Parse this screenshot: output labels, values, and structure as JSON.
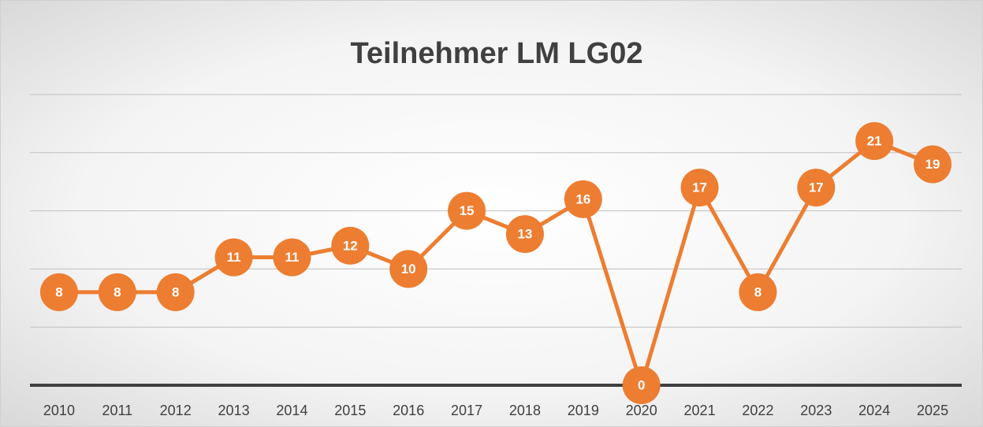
{
  "chart_data": {
    "type": "line",
    "title": "Teilnehmer LM LG02",
    "categories": [
      "2010",
      "2011",
      "2012",
      "2013",
      "2014",
      "2015",
      "2016",
      "2017",
      "2018",
      "2019",
      "2020",
      "2021",
      "2022",
      "2023",
      "2024",
      "2025"
    ],
    "values": [
      8,
      8,
      8,
      11,
      11,
      12,
      10,
      15,
      13,
      16,
      0,
      17,
      8,
      17,
      21,
      19
    ],
    "color": "#ed7d31",
    "ylim": [
      0,
      25
    ],
    "yticks": [
      0,
      5,
      10,
      15,
      20,
      25
    ],
    "grid": true
  }
}
